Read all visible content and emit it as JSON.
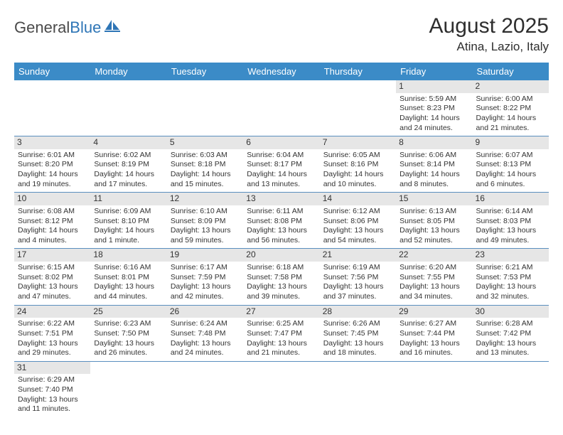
{
  "logo": {
    "text1": "General",
    "text2": "Blue"
  },
  "title": "August 2025",
  "location": "Atina, Lazio, Italy",
  "colors": {
    "header_bg": "#3b8bc7",
    "header_text": "#ffffff",
    "daynum_bg": "#e6e6e6",
    "row_border": "#5a8fbf",
    "logo_gray": "#4a4a4a",
    "logo_blue": "#2e75b6"
  },
  "weekdays": [
    "Sunday",
    "Monday",
    "Tuesday",
    "Wednesday",
    "Thursday",
    "Friday",
    "Saturday"
  ],
  "weeks": [
    [
      null,
      null,
      null,
      null,
      null,
      {
        "d": "1",
        "sr": "5:59 AM",
        "ss": "8:23 PM",
        "dl": "14 hours and 24 minutes."
      },
      {
        "d": "2",
        "sr": "6:00 AM",
        "ss": "8:22 PM",
        "dl": "14 hours and 21 minutes."
      }
    ],
    [
      {
        "d": "3",
        "sr": "6:01 AM",
        "ss": "8:20 PM",
        "dl": "14 hours and 19 minutes."
      },
      {
        "d": "4",
        "sr": "6:02 AM",
        "ss": "8:19 PM",
        "dl": "14 hours and 17 minutes."
      },
      {
        "d": "5",
        "sr": "6:03 AM",
        "ss": "8:18 PM",
        "dl": "14 hours and 15 minutes."
      },
      {
        "d": "6",
        "sr": "6:04 AM",
        "ss": "8:17 PM",
        "dl": "14 hours and 13 minutes."
      },
      {
        "d": "7",
        "sr": "6:05 AM",
        "ss": "8:16 PM",
        "dl": "14 hours and 10 minutes."
      },
      {
        "d": "8",
        "sr": "6:06 AM",
        "ss": "8:14 PM",
        "dl": "14 hours and 8 minutes."
      },
      {
        "d": "9",
        "sr": "6:07 AM",
        "ss": "8:13 PM",
        "dl": "14 hours and 6 minutes."
      }
    ],
    [
      {
        "d": "10",
        "sr": "6:08 AM",
        "ss": "8:12 PM",
        "dl": "14 hours and 4 minutes."
      },
      {
        "d": "11",
        "sr": "6:09 AM",
        "ss": "8:10 PM",
        "dl": "14 hours and 1 minute."
      },
      {
        "d": "12",
        "sr": "6:10 AM",
        "ss": "8:09 PM",
        "dl": "13 hours and 59 minutes."
      },
      {
        "d": "13",
        "sr": "6:11 AM",
        "ss": "8:08 PM",
        "dl": "13 hours and 56 minutes."
      },
      {
        "d": "14",
        "sr": "6:12 AM",
        "ss": "8:06 PM",
        "dl": "13 hours and 54 minutes."
      },
      {
        "d": "15",
        "sr": "6:13 AM",
        "ss": "8:05 PM",
        "dl": "13 hours and 52 minutes."
      },
      {
        "d": "16",
        "sr": "6:14 AM",
        "ss": "8:03 PM",
        "dl": "13 hours and 49 minutes."
      }
    ],
    [
      {
        "d": "17",
        "sr": "6:15 AM",
        "ss": "8:02 PM",
        "dl": "13 hours and 47 minutes."
      },
      {
        "d": "18",
        "sr": "6:16 AM",
        "ss": "8:01 PM",
        "dl": "13 hours and 44 minutes."
      },
      {
        "d": "19",
        "sr": "6:17 AM",
        "ss": "7:59 PM",
        "dl": "13 hours and 42 minutes."
      },
      {
        "d": "20",
        "sr": "6:18 AM",
        "ss": "7:58 PM",
        "dl": "13 hours and 39 minutes."
      },
      {
        "d": "21",
        "sr": "6:19 AM",
        "ss": "7:56 PM",
        "dl": "13 hours and 37 minutes."
      },
      {
        "d": "22",
        "sr": "6:20 AM",
        "ss": "7:55 PM",
        "dl": "13 hours and 34 minutes."
      },
      {
        "d": "23",
        "sr": "6:21 AM",
        "ss": "7:53 PM",
        "dl": "13 hours and 32 minutes."
      }
    ],
    [
      {
        "d": "24",
        "sr": "6:22 AM",
        "ss": "7:51 PM",
        "dl": "13 hours and 29 minutes."
      },
      {
        "d": "25",
        "sr": "6:23 AM",
        "ss": "7:50 PM",
        "dl": "13 hours and 26 minutes."
      },
      {
        "d": "26",
        "sr": "6:24 AM",
        "ss": "7:48 PM",
        "dl": "13 hours and 24 minutes."
      },
      {
        "d": "27",
        "sr": "6:25 AM",
        "ss": "7:47 PM",
        "dl": "13 hours and 21 minutes."
      },
      {
        "d": "28",
        "sr": "6:26 AM",
        "ss": "7:45 PM",
        "dl": "13 hours and 18 minutes."
      },
      {
        "d": "29",
        "sr": "6:27 AM",
        "ss": "7:44 PM",
        "dl": "13 hours and 16 minutes."
      },
      {
        "d": "30",
        "sr": "6:28 AM",
        "ss": "7:42 PM",
        "dl": "13 hours and 13 minutes."
      }
    ],
    [
      {
        "d": "31",
        "sr": "6:29 AM",
        "ss": "7:40 PM",
        "dl": "13 hours and 11 minutes."
      },
      null,
      null,
      null,
      null,
      null,
      null
    ]
  ],
  "labels": {
    "sunrise": "Sunrise:",
    "sunset": "Sunset:",
    "daylight": "Daylight:"
  }
}
